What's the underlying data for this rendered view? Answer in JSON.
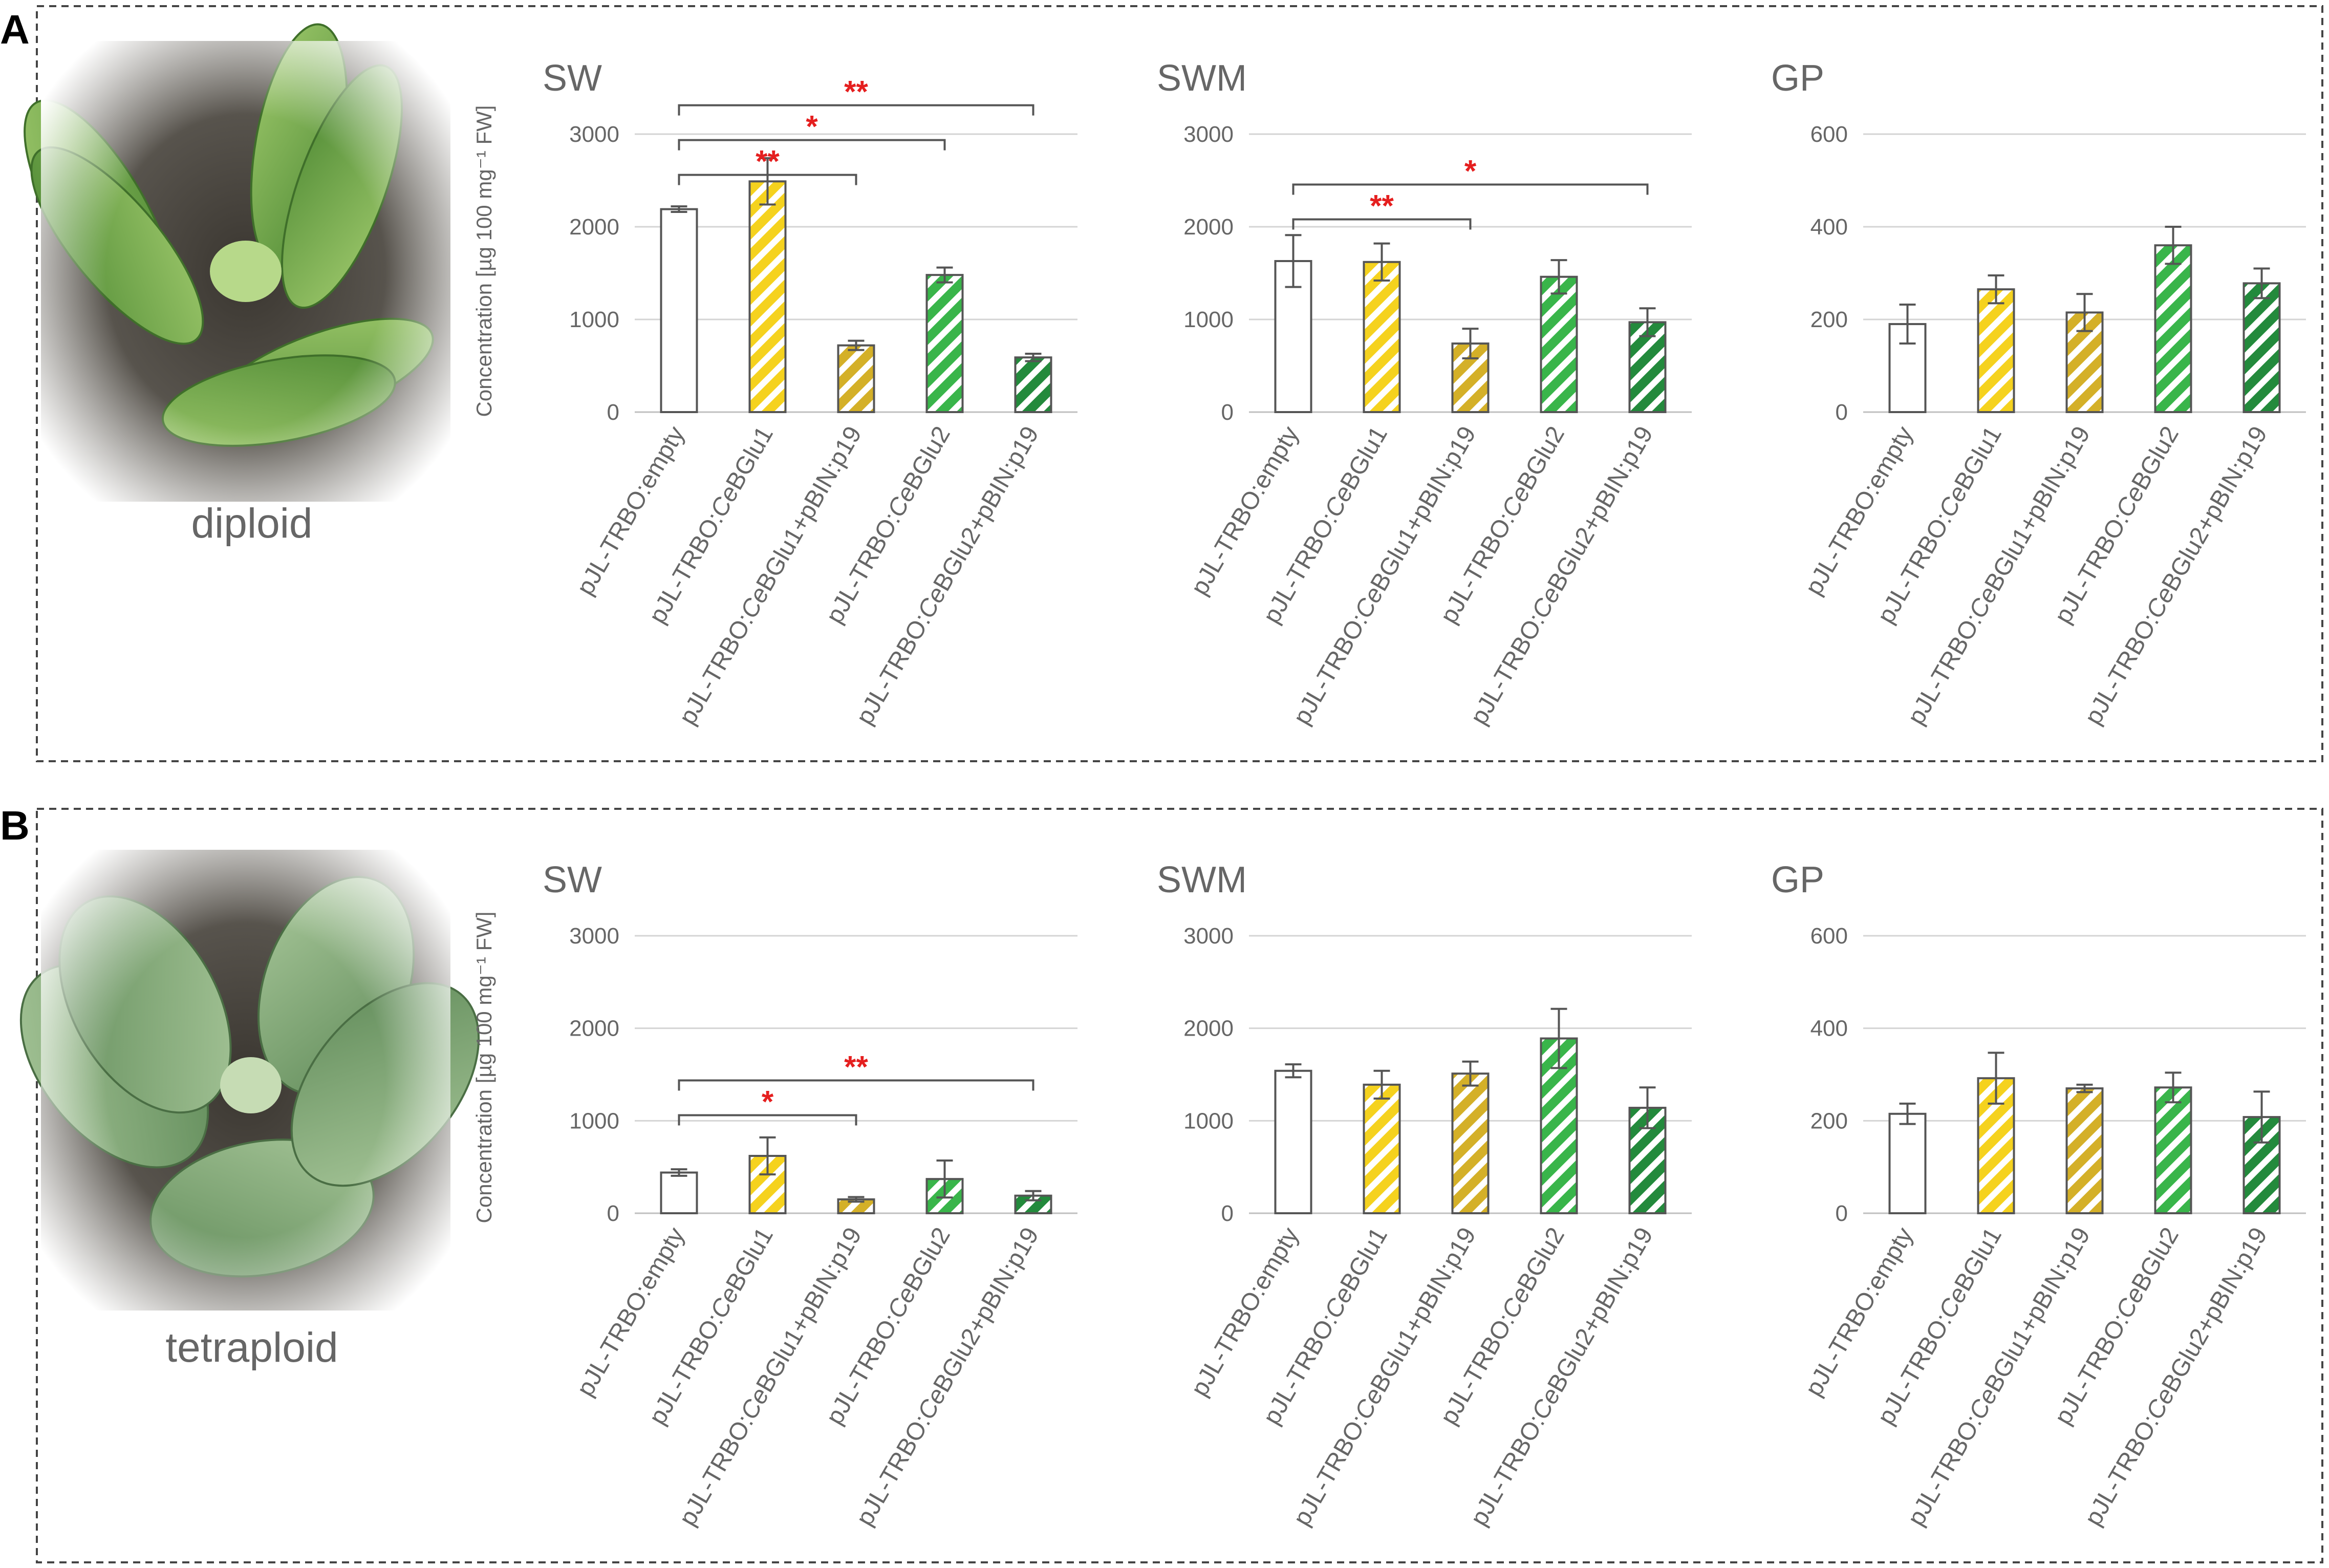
{
  "colors": {
    "empty": "#ffffff",
    "yellow": "#f5d21e",
    "darkyellow": "#d4b028",
    "lightgreen": "#39b54a",
    "darkgreen": "#238a3c",
    "sig": "#e51f1f",
    "axis": "#555555",
    "grid": "#d4d4d4",
    "text": "#666666"
  },
  "panels": [
    {
      "letter": "A",
      "photo_label": "diploid"
    },
    {
      "letter": "B",
      "photo_label": "tetraploid"
    }
  ],
  "ylabel": "Concentration [µg 100 mg⁻¹ FW]",
  "chart_data": [
    {
      "type": "bar",
      "panel": "A",
      "title": "SW",
      "categories": [
        "pJL-TRBO:empty",
        "pJL-TRBO:CeBGlu1",
        "pJL-TRBO:CeBGlu1+pBIN:p19",
        "pJL-TRBO:CeBGlu2",
        "pJL-TRBO:CeBGlu2+pBIN:p19"
      ],
      "values": [
        2190,
        2490,
        720,
        1480,
        590
      ],
      "errors": [
        30,
        250,
        50,
        80,
        40
      ],
      "ylim": [
        0,
        3000
      ],
      "yticks": [
        0,
        1000,
        2000,
        3000
      ],
      "significance": [
        {
          "from": 0,
          "to": 2,
          "label": "**"
        },
        {
          "from": 0,
          "to": 3,
          "label": "*"
        },
        {
          "from": 0,
          "to": 4,
          "label": "**"
        }
      ]
    },
    {
      "type": "bar",
      "panel": "A",
      "title": "SWM",
      "categories": [
        "pJL-TRBO:empty",
        "pJL-TRBO:CeBGlu1",
        "pJL-TRBO:CeBGlu1+pBIN:p19",
        "pJL-TRBO:CeBGlu2",
        "pJL-TRBO:CeBGlu2+pBIN:p19"
      ],
      "values": [
        1630,
        1620,
        740,
        1460,
        970
      ],
      "errors": [
        280,
        200,
        160,
        180,
        150
      ],
      "ylim": [
        0,
        3000
      ],
      "yticks": [
        0,
        1000,
        2000,
        3000
      ],
      "significance": [
        {
          "from": 0,
          "to": 2,
          "label": "**"
        },
        {
          "from": 0,
          "to": 4,
          "label": "*"
        }
      ]
    },
    {
      "type": "bar",
      "panel": "A",
      "title": "GP",
      "categories": [
        "pJL-TRBO:empty",
        "pJL-TRBO:CeBGlu1",
        "pJL-TRBO:CeBGlu1+pBIN:p19",
        "pJL-TRBO:CeBGlu2",
        "pJL-TRBO:CeBGlu2+pBIN:p19"
      ],
      "values": [
        190,
        265,
        215,
        360,
        278
      ],
      "errors": [
        42,
        30,
        40,
        40,
        32
      ],
      "ylim": [
        0,
        600
      ],
      "yticks": [
        0,
        200,
        400,
        600
      ],
      "significance": []
    },
    {
      "type": "bar",
      "panel": "B",
      "title": "SW",
      "categories": [
        "pJL-TRBO:empty",
        "pJL-TRBO:CeBGlu1",
        "pJL-TRBO:CeBGlu1+pBIN:p19",
        "pJL-TRBO:CeBGlu2",
        "pJL-TRBO:CeBGlu2+pBIN:p19"
      ],
      "values": [
        440,
        620,
        150,
        370,
        190
      ],
      "errors": [
        35,
        200,
        25,
        200,
        50
      ],
      "ylim": [
        0,
        3000
      ],
      "yticks": [
        0,
        1000,
        2000,
        3000
      ],
      "significance": [
        {
          "from": 0,
          "to": 2,
          "label": "*"
        },
        {
          "from": 0,
          "to": 4,
          "label": "**"
        }
      ]
    },
    {
      "type": "bar",
      "panel": "B",
      "title": "SWM",
      "categories": [
        "pJL-TRBO:empty",
        "pJL-TRBO:CeBGlu1",
        "pJL-TRBO:CeBGlu1+pBIN:p19",
        "pJL-TRBO:CeBGlu2",
        "pJL-TRBO:CeBGlu2+pBIN:p19"
      ],
      "values": [
        1540,
        1390,
        1510,
        1890,
        1140
      ],
      "errors": [
        70,
        150,
        130,
        320,
        220
      ],
      "ylim": [
        0,
        3000
      ],
      "yticks": [
        0,
        1000,
        2000,
        3000
      ],
      "significance": []
    },
    {
      "type": "bar",
      "panel": "B",
      "title": "GP",
      "categories": [
        "pJL-TRBO:empty",
        "pJL-TRBO:CeBGlu1",
        "pJL-TRBO:CeBGlu1+pBIN:p19",
        "pJL-TRBO:CeBGlu2",
        "pJL-TRBO:CeBGlu2+pBIN:p19"
      ],
      "values": [
        215,
        292,
        270,
        272,
        208
      ],
      "errors": [
        22,
        55,
        8,
        32,
        55
      ],
      "ylim": [
        0,
        600
      ],
      "yticks": [
        0,
        200,
        400,
        600
      ],
      "significance": []
    }
  ]
}
